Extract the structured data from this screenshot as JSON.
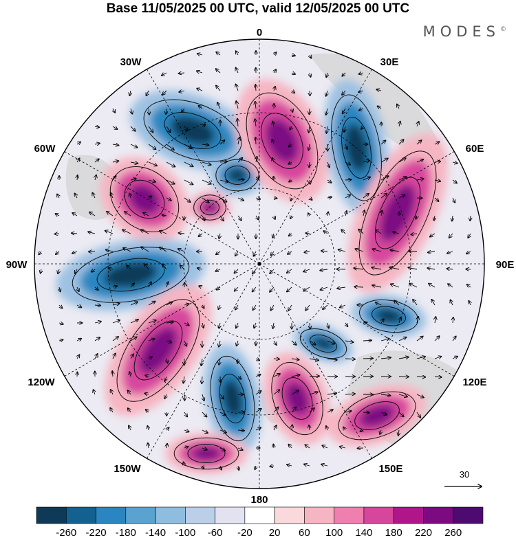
{
  "title": "Base 11/05/2025 00 UTC, valid 12/05/2025 00 UTC",
  "brand": "MODES",
  "brand_mark": "©",
  "longitude_labels": {
    "top": "0",
    "top_right": "30E",
    "right_upper": "60E",
    "right": "90E",
    "right_lower": "120E",
    "bottom_right": "150E",
    "bottom": "180",
    "bottom_left": "150W",
    "left_lower": "120W",
    "left": "90W",
    "left_upper": "60W",
    "top_left": "30W"
  },
  "reference_vector": {
    "label": "30"
  },
  "colorbar": {
    "ticks": [
      "-260",
      "-220",
      "-180",
      "-140",
      "-100",
      "-60",
      "-20",
      "20",
      "60",
      "100",
      "140",
      "180",
      "220",
      "260"
    ],
    "colors": [
      "#0f3a57",
      "#13618f",
      "#2a86c0",
      "#5aa3d0",
      "#8fbde0",
      "#bccfe9",
      "#e2e2f0",
      "#ffffff",
      "#f9d9dc",
      "#f6b5c2",
      "#ee7fae",
      "#d7469d",
      "#b0168a",
      "#7c0b82",
      "#4d0b72"
    ]
  },
  "field_colors": {
    "neg_strong": "#113a58",
    "neg_mid": "#2a86c0",
    "neg_weak": "#9dc1e2",
    "pos_strong": "#7c0b82",
    "pos_mid": "#d7469d",
    "pos_weak": "#f6b5c2",
    "land": "#d6d6d6"
  }
}
